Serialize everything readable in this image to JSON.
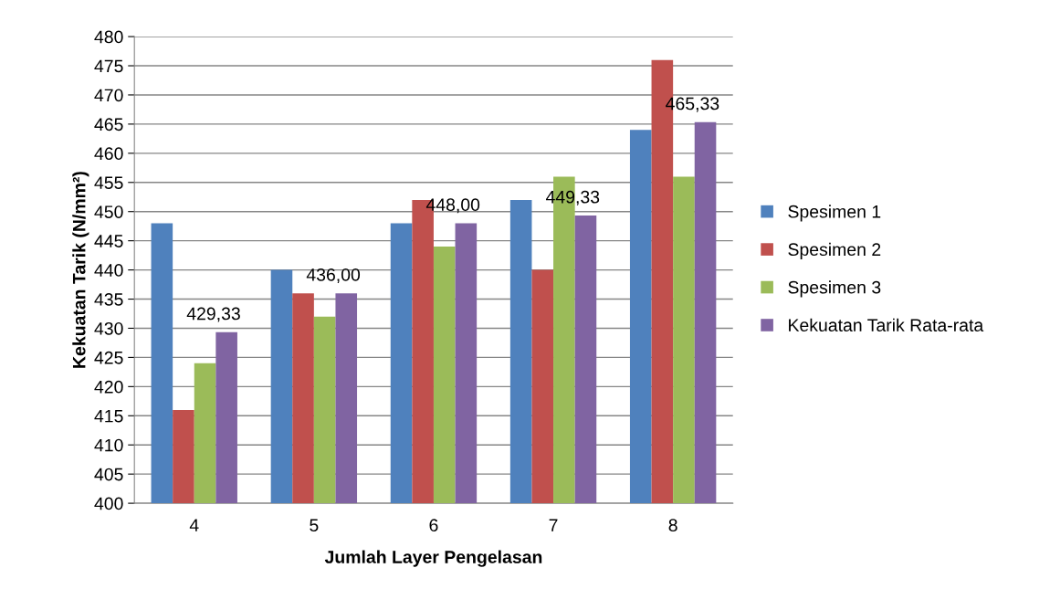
{
  "chart_data": {
    "type": "bar",
    "xlabel": "Jumlah Layer Pengelasan",
    "ylabel": "Kekuatan Tarik (N/mm²)",
    "categories": [
      "4",
      "5",
      "6",
      "7",
      "8"
    ],
    "series": [
      {
        "name": "Spesimen 1",
        "color": "#4f81bd",
        "values": [
          448,
          440,
          448,
          452,
          464
        ]
      },
      {
        "name": "Spesimen 2",
        "color": "#c0504d",
        "values": [
          416,
          436,
          452,
          440,
          476
        ]
      },
      {
        "name": "Spesimen 3",
        "color": "#9bbb59",
        "values": [
          424,
          432,
          444,
          456,
          456
        ]
      },
      {
        "name": "Kekuatan Tarik Rata-rata",
        "color": "#8064a2",
        "values": [
          429.33,
          436,
          448,
          449.33,
          465.33
        ],
        "value_labels": [
          "429,33",
          "436,00",
          "448,00",
          "449,33",
          "465,33"
        ]
      }
    ],
    "ylim": [
      400,
      480
    ],
    "yticks": [
      400,
      405,
      410,
      415,
      420,
      425,
      430,
      435,
      440,
      445,
      450,
      455,
      460,
      465,
      470,
      475,
      480
    ],
    "grid": "y",
    "legend": "right"
  }
}
